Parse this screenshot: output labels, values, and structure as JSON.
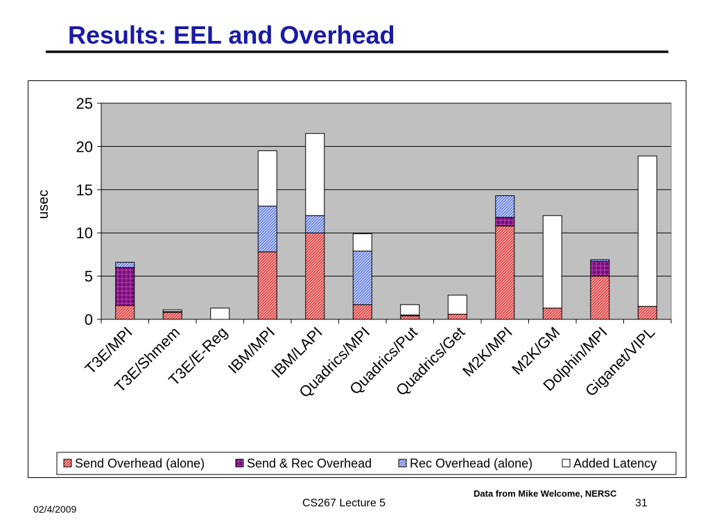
{
  "slide": {
    "title": "Results: EEL and Overhead",
    "date": "02/4/2009",
    "course": "CS267 Lecture 5",
    "page": "31",
    "source_note": "Data from Mike Welcome, NERSC"
  },
  "colors": {
    "title": "#1a1aa6",
    "plot_background": "#c0c0c0",
    "send_overhead": "#e23b3b",
    "send_rec_overhead": "#7a0a7a",
    "rec_overhead": "#3b5bdb",
    "added_latency": "#ffffff"
  },
  "chart_data": {
    "type": "bar",
    "stacked": true,
    "title": "",
    "xlabel": "",
    "ylabel": "usec",
    "ylim": [
      0,
      25
    ],
    "yticks": [
      0,
      5,
      10,
      15,
      20,
      25
    ],
    "grid": true,
    "legend_position": "bottom",
    "categories": [
      "T3E/MPI",
      "T3E/Shmem",
      "T3E/E-Reg",
      "IBM/MPI",
      "IBM/LAPI",
      "Quadrics/MPI",
      "Quadrics/Put",
      "Quadrics/Get",
      "M2K/MPI",
      "M2K/GM",
      "Dolphin/MPI",
      "Giganet/VIPL"
    ],
    "series": [
      {
        "name": "Send Overhead (alone)",
        "values": [
          1.6,
          0.8,
          0.0,
          7.8,
          10.0,
          1.7,
          0.4,
          0.6,
          10.8,
          1.3,
          5.0,
          1.5
        ]
      },
      {
        "name": "Send & Rec Overhead",
        "values": [
          4.4,
          0.0,
          0.0,
          0.0,
          0.0,
          0.0,
          0.1,
          0.0,
          1.0,
          0.0,
          1.7,
          0.0
        ]
      },
      {
        "name": "Rec Overhead (alone)",
        "values": [
          0.6,
          0.1,
          0.0,
          5.3,
          2.0,
          6.2,
          0.0,
          0.0,
          2.5,
          0.0,
          0.2,
          0.0
        ]
      },
      {
        "name": "Added Latency",
        "values": [
          0.0,
          0.2,
          1.3,
          6.4,
          9.5,
          2.0,
          1.2,
          2.2,
          0.0,
          10.7,
          0.0,
          17.4
        ]
      }
    ]
  }
}
